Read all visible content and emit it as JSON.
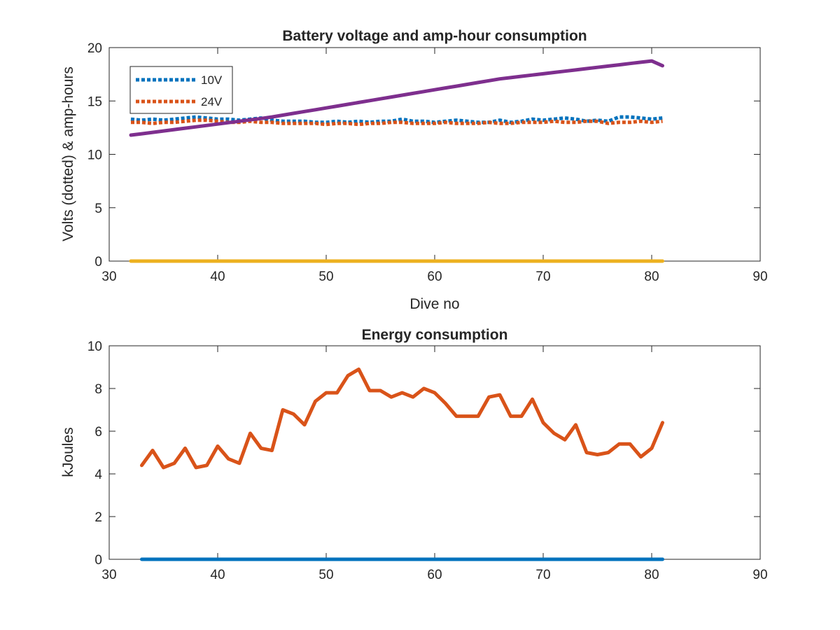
{
  "chart_data": [
    {
      "type": "line",
      "title": "Battery voltage and amp-hour consumption",
      "xlabel": "Dive no",
      "ylabel": "Volts (dotted) & amp-hours",
      "xlim": [
        30,
        90
      ],
      "ylim": [
        0,
        20
      ],
      "xticks": [
        "30",
        "40",
        "50",
        "60",
        "70",
        "80",
        "90"
      ],
      "yticks": [
        "0",
        "5",
        "10",
        "15",
        "20"
      ],
      "grid": false,
      "legend": "top-left",
      "x": [
        32,
        33,
        34,
        35,
        36,
        37,
        38,
        39,
        40,
        41,
        42,
        43,
        44,
        45,
        46,
        47,
        48,
        49,
        50,
        51,
        52,
        53,
        54,
        55,
        56,
        57,
        58,
        59,
        60,
        61,
        62,
        63,
        64,
        65,
        66,
        67,
        68,
        69,
        70,
        71,
        72,
        73,
        74,
        75,
        76,
        77,
        78,
        79,
        80,
        81
      ],
      "series": [
        {
          "name": "10V",
          "color": "#0072BD",
          "style": "dotted",
          "values": [
            13.3,
            13.2,
            13.3,
            13.2,
            13.3,
            13.4,
            13.5,
            13.4,
            13.3,
            13.3,
            13.2,
            13.3,
            13.4,
            13.2,
            13.1,
            13.1,
            13.1,
            13.0,
            13.0,
            13.1,
            13.0,
            13.1,
            13.0,
            13.1,
            13.1,
            13.3,
            13.1,
            13.1,
            13.0,
            13.1,
            13.2,
            13.1,
            13.0,
            13.0,
            13.2,
            13.0,
            13.1,
            13.3,
            13.2,
            13.3,
            13.4,
            13.3,
            13.1,
            13.2,
            13.1,
            13.5,
            13.5,
            13.4,
            13.3,
            13.4
          ]
        },
        {
          "name": "24V",
          "color": "#D95319",
          "style": "dotted",
          "values": [
            13.0,
            13.0,
            12.9,
            13.0,
            13.0,
            13.1,
            13.2,
            13.2,
            13.1,
            13.0,
            13.0,
            13.1,
            13.0,
            13.0,
            12.9,
            12.9,
            12.9,
            12.9,
            12.8,
            12.9,
            12.9,
            12.8,
            12.9,
            12.9,
            13.0,
            13.0,
            12.9,
            12.9,
            12.9,
            13.0,
            12.9,
            12.9,
            12.9,
            13.0,
            12.9,
            12.9,
            13.0,
            13.0,
            13.0,
            13.1,
            13.0,
            13.0,
            13.1,
            13.1,
            12.9,
            13.0,
            13.0,
            13.1,
            13.0,
            13.1
          ]
        },
        {
          "color": "#EDB120",
          "style": "solid",
          "values": [
            0,
            0,
            0,
            0,
            0,
            0,
            0,
            0,
            0,
            0,
            0,
            0,
            0,
            0,
            0,
            0,
            0,
            0,
            0,
            0,
            0,
            0,
            0,
            0,
            0,
            0,
            0,
            0,
            0,
            0,
            0,
            0,
            0,
            0,
            0,
            0,
            0,
            0,
            0,
            0,
            0,
            0,
            0,
            0,
            0,
            0,
            0,
            0,
            0,
            0
          ]
        },
        {
          "color": "#7E2F8E",
          "style": "solid",
          "values": [
            11.8,
            11.93,
            12.06,
            12.19,
            12.32,
            12.45,
            12.58,
            12.71,
            12.84,
            12.97,
            13.1,
            13.23,
            13.36,
            13.5,
            13.67,
            13.84,
            14.01,
            14.18,
            14.35,
            14.52,
            14.69,
            14.86,
            15.03,
            15.2,
            15.37,
            15.54,
            15.71,
            15.88,
            16.05,
            16.22,
            16.39,
            16.56,
            16.73,
            16.9,
            17.07,
            17.19,
            17.31,
            17.43,
            17.55,
            17.67,
            17.79,
            17.91,
            18.03,
            18.15,
            18.27,
            18.39,
            18.51,
            18.63,
            18.75,
            18.3
          ]
        }
      ],
      "legend_colors": [
        "#0072BD",
        "#D95319"
      ]
    },
    {
      "type": "line",
      "title": "Energy consumption",
      "xlabel": "",
      "ylabel": "kJoules",
      "xlim": [
        30,
        90
      ],
      "ylim": [
        0,
        10
      ],
      "xticks": [
        "30",
        "40",
        "50",
        "60",
        "70",
        "80",
        "90"
      ],
      "yticks": [
        "0",
        "2",
        "4",
        "6",
        "8",
        "10"
      ],
      "grid": false,
      "x": [
        33,
        34,
        35,
        36,
        37,
        38,
        39,
        40,
        41,
        42,
        43,
        44,
        45,
        46,
        47,
        48,
        49,
        50,
        51,
        52,
        53,
        54,
        55,
        56,
        57,
        58,
        59,
        60,
        61,
        62,
        63,
        64,
        65,
        66,
        67,
        68,
        69,
        70,
        71,
        72,
        73,
        74,
        75,
        76,
        77,
        78,
        79,
        80,
        81
      ],
      "series": [
        {
          "color": "#0072BD",
          "style": "solid",
          "values": [
            0,
            0,
            0,
            0,
            0,
            0,
            0,
            0,
            0,
            0,
            0,
            0,
            0,
            0,
            0,
            0,
            0,
            0,
            0,
            0,
            0,
            0,
            0,
            0,
            0,
            0,
            0,
            0,
            0,
            0,
            0,
            0,
            0,
            0,
            0,
            0,
            0,
            0,
            0,
            0,
            0,
            0,
            0,
            0,
            0,
            0,
            0,
            0,
            0
          ]
        },
        {
          "color": "#D95319",
          "style": "solid",
          "values": [
            4.4,
            5.1,
            4.3,
            4.5,
            5.2,
            4.3,
            4.4,
            5.3,
            4.7,
            4.5,
            5.9,
            5.2,
            5.1,
            7.0,
            6.8,
            6.3,
            7.4,
            7.8,
            7.8,
            8.6,
            8.9,
            7.9,
            7.9,
            7.6,
            7.8,
            7.6,
            8.0,
            7.8,
            7.3,
            6.7,
            6.7,
            6.7,
            7.6,
            7.7,
            6.7,
            6.7,
            7.5,
            6.4,
            5.9,
            5.6,
            6.3,
            5.0,
            4.9,
            5.0,
            5.4,
            5.4,
            4.8,
            5.2,
            6.4
          ]
        }
      ]
    }
  ]
}
